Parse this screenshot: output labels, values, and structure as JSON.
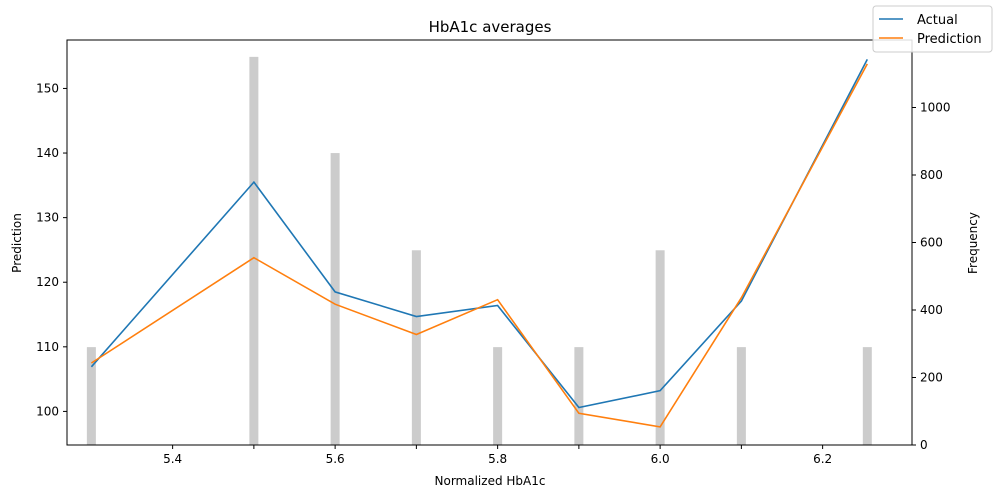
{
  "chart_data": {
    "type": "line",
    "title": "HbA1c averages",
    "xlabel": "Normalized HbA1c",
    "ylabel": "Prediction",
    "y2label": "Frequency",
    "xlim": [
      5.27,
      6.31
    ],
    "ylim": [
      94.8,
      157.5
    ],
    "y2lim": [
      0,
      1200
    ],
    "xticks": [
      5.4,
      5.5,
      5.6,
      5.7,
      5.8,
      5.9,
      6.0,
      6.1,
      6.2
    ],
    "xtick_labels": [
      "5.4",
      "",
      "5.6",
      "",
      "5.8",
      "",
      "6.0",
      "",
      "6.2"
    ],
    "yticks": [
      100,
      110,
      120,
      130,
      140,
      150
    ],
    "y2ticks": [
      0,
      200,
      400,
      600,
      800,
      1000
    ],
    "x": [
      5.3,
      5.5,
      5.6,
      5.7,
      5.8,
      5.9,
      6.0,
      6.1,
      6.255
    ],
    "series": [
      {
        "name": "Actual",
        "color": "#1f77b4",
        "values": [
          106.9,
          135.5,
          118.5,
          114.7,
          116.4,
          100.6,
          103.2,
          117.1,
          154.5
        ]
      },
      {
        "name": "Prediction",
        "color": "#ff7f0e",
        "values": [
          107.5,
          123.8,
          116.6,
          111.9,
          117.3,
          99.7,
          97.6,
          117.6,
          153.8
        ]
      }
    ],
    "histogram": {
      "color": "#cccccc",
      "x": [
        5.3,
        5.5,
        5.6,
        5.7,
        5.8,
        5.9,
        6.0,
        6.1,
        6.255
      ],
      "values": [
        290,
        1150,
        865,
        577,
        290,
        290,
        577,
        290,
        290
      ]
    },
    "legend": "top-right",
    "grid": false
  }
}
